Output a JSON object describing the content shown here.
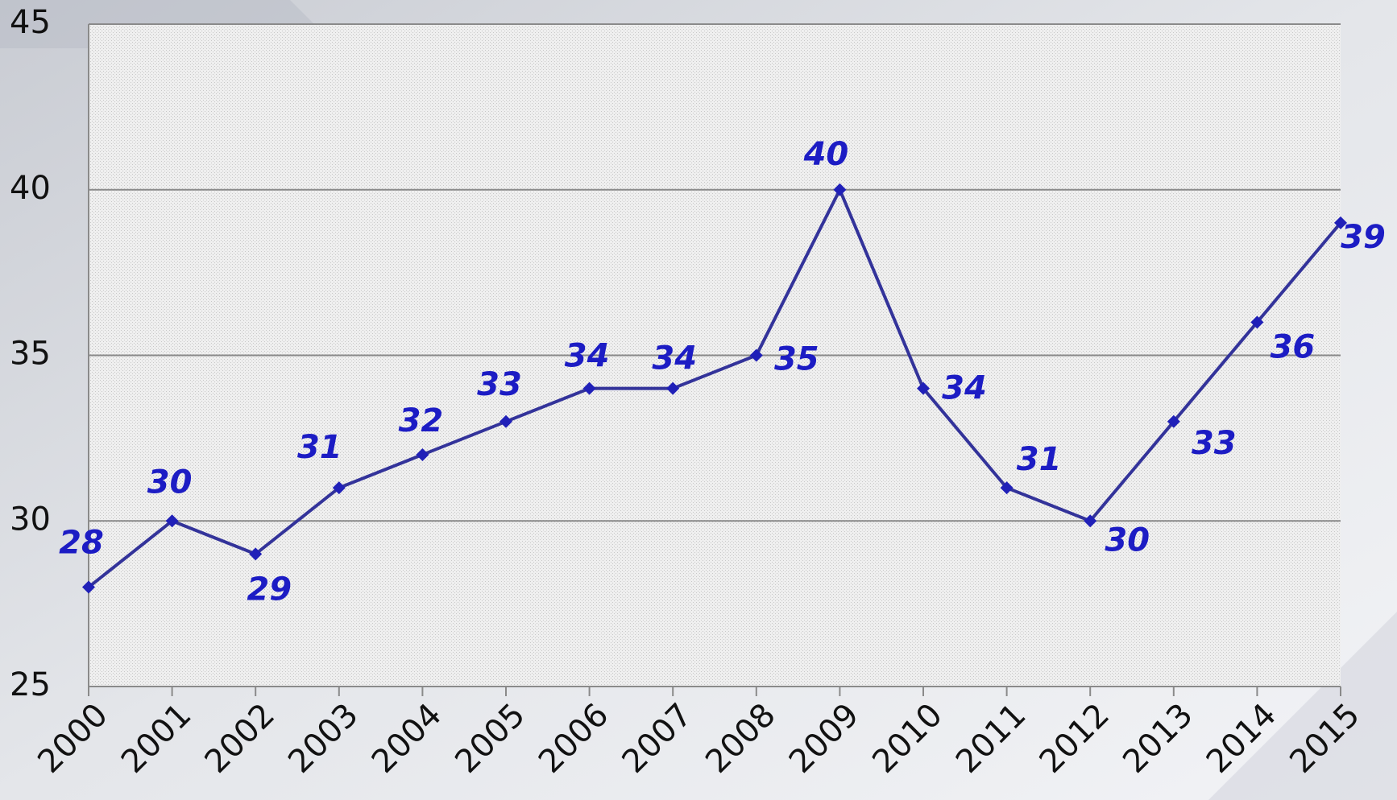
{
  "chart_data": {
    "type": "line",
    "categories": [
      "2000",
      "2001",
      "2002",
      "2003",
      "2004",
      "2005",
      "2006",
      "2007",
      "2008",
      "2009",
      "2010",
      "2011",
      "2012",
      "2013",
      "2014",
      "2015"
    ],
    "series": [
      {
        "name": null,
        "color": "#33339a",
        "values": [
          28,
          30,
          29,
          31,
          32,
          33,
          34,
          34,
          35,
          40,
          34,
          31,
          30,
          33,
          36,
          39
        ]
      }
    ],
    "ylim": [
      25,
      45
    ],
    "yticks": [
      25,
      30,
      35,
      40,
      45
    ],
    "grid": true
  }
}
